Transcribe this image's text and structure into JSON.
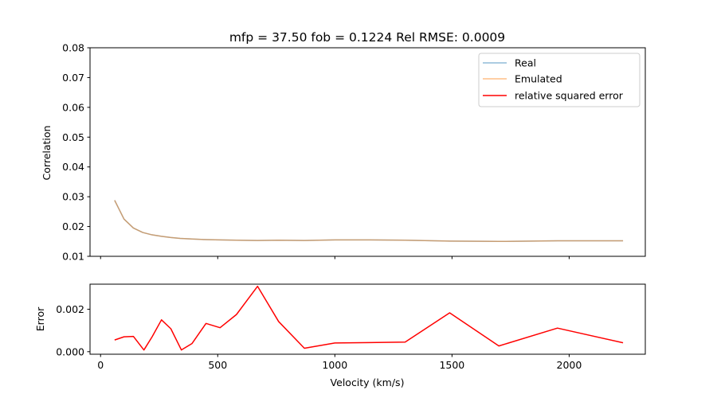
{
  "chart_data": [
    {
      "type": "line",
      "title": "mfp = 37.50 fob = 0.1224 Rel RMSE: 0.0009",
      "xlabel": "",
      "ylabel": "Correlation",
      "xlim": [
        -45,
        2325
      ],
      "ylim": [
        0.01,
        0.08
      ],
      "yticks": [
        0.01,
        0.02,
        0.03,
        0.04,
        0.05,
        0.06,
        0.07,
        0.08
      ],
      "ytick_labels": [
        "0.01",
        "0.02",
        "0.03",
        "0.04",
        "0.05",
        "0.06",
        "0.07",
        "0.08"
      ],
      "xticks": [
        0,
        500,
        1000,
        1500,
        2000
      ],
      "show_xtick_labels": false,
      "grid": false,
      "legend_position": "top-right",
      "series": [
        {
          "name": "Real",
          "color": "#1f77b4",
          "x": [
            60,
            100,
            140,
            180,
            220,
            260,
            300,
            340,
            390,
            450,
            510,
            580,
            670,
            760,
            870,
            1000,
            1150,
            1300,
            1490,
            1700,
            1950,
            2230
          ],
          "y": [
            0.0288,
            0.0225,
            0.0195,
            0.018,
            0.0172,
            0.0167,
            0.0163,
            0.016,
            0.0158,
            0.0156,
            0.0155,
            0.0154,
            0.0153,
            0.0154,
            0.0153,
            0.0155,
            0.0155,
            0.0154,
            0.0151,
            0.015,
            0.0152,
            0.0152
          ]
        },
        {
          "name": "Emulated",
          "color": "#ff7f0e",
          "x": [
            60,
            100,
            140,
            180,
            220,
            260,
            300,
            340,
            390,
            450,
            510,
            580,
            670,
            760,
            870,
            1000,
            1150,
            1300,
            1490,
            1700,
            1950,
            2230
          ],
          "y": [
            0.0288,
            0.0225,
            0.0195,
            0.018,
            0.0172,
            0.0167,
            0.0163,
            0.016,
            0.0158,
            0.0156,
            0.0155,
            0.0154,
            0.0153,
            0.0154,
            0.0153,
            0.0155,
            0.0155,
            0.0154,
            0.0151,
            0.015,
            0.0152,
            0.0152
          ]
        },
        {
          "name": "relative squared error",
          "color": "#ff0000",
          "x": [],
          "y": []
        }
      ]
    },
    {
      "type": "line",
      "title": "",
      "xlabel": "Velocity (km/s)",
      "ylabel": "Error",
      "xlim": [
        -45,
        2325
      ],
      "ylim": [
        -0.00012,
        0.00318
      ],
      "yticks": [
        0.0,
        0.002
      ],
      "ytick_labels": [
        "0.000",
        "0.002"
      ],
      "xticks": [
        0,
        500,
        1000,
        1500,
        2000
      ],
      "xtick_labels": [
        "0",
        "500",
        "1000",
        "1500",
        "2000"
      ],
      "grid": false,
      "series": [
        {
          "color": "#ff0000",
          "x": [
            60,
            100,
            140,
            185,
            220,
            260,
            300,
            345,
            390,
            450,
            510,
            580,
            670,
            760,
            870,
            1000,
            1150,
            1300,
            1490,
            1700,
            1950,
            2230
          ],
          "y": [
            0.00055,
            0.0007,
            0.00072,
            8e-05,
            0.0007,
            0.0015,
            0.00108,
            8e-05,
            0.00038,
            0.00133,
            0.00113,
            0.00175,
            0.00308,
            0.00142,
            0.00016,
            0.00041,
            0.00043,
            0.00045,
            0.00183,
            0.00027,
            0.00111,
            0.00042
          ]
        }
      ]
    }
  ]
}
